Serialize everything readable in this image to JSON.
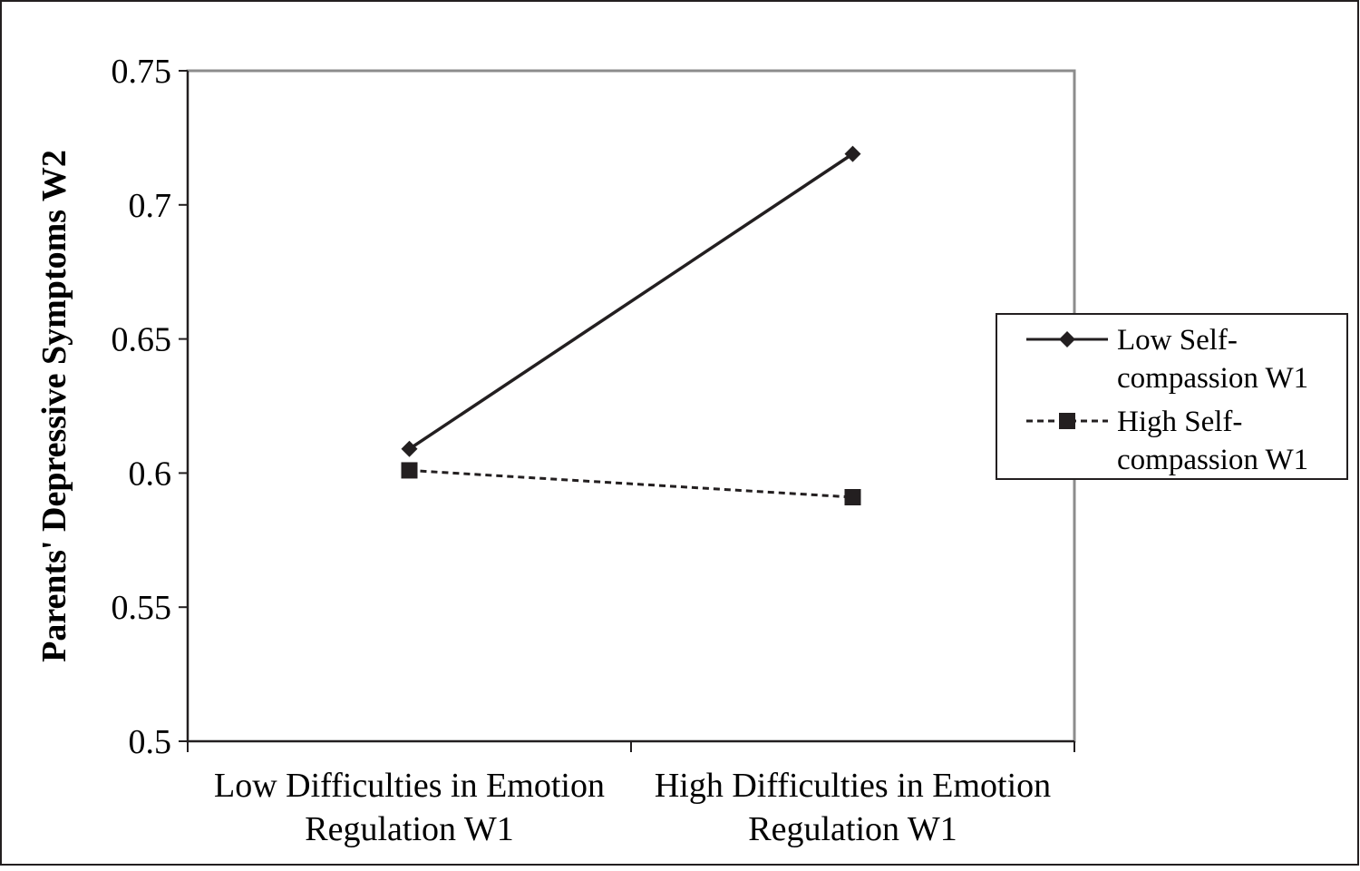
{
  "chart_data": {
    "type": "line",
    "ylabel": "Parents' Depressive Symptoms W2",
    "xlabel": "",
    "categories": [
      [
        "Low Difficulties in Emotion",
        "Regulation W1"
      ],
      [
        "High Difficulties in Emotion",
        "Regulation W1"
      ]
    ],
    "ylim": [
      0.5,
      0.75
    ],
    "yticks": [
      "0.5",
      "0.55",
      "0.6",
      "0.65",
      "0.7",
      "0.75"
    ],
    "grid": false,
    "legend_position": "right",
    "series": [
      {
        "name_lines": [
          "Low Self-",
          "compassion W1"
        ],
        "values": [
          0.609,
          0.719
        ],
        "marker": "diamond",
        "line_style": "solid",
        "color": "#231f20"
      },
      {
        "name_lines": [
          "High Self-",
          "compassion W1"
        ],
        "values": [
          0.601,
          0.591
        ],
        "marker": "square",
        "line_style": "dashed",
        "color": "#231f20"
      }
    ]
  }
}
